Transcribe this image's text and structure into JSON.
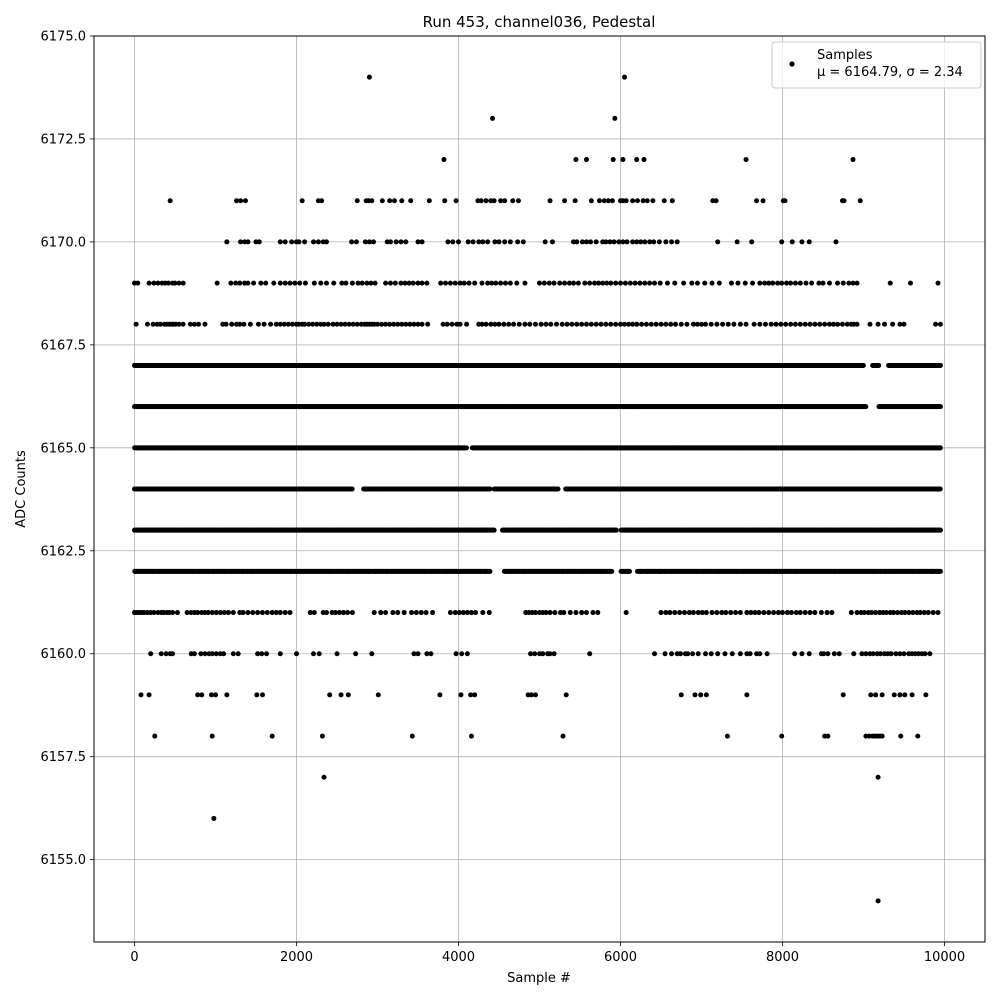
{
  "chart_data": {
    "type": "scatter",
    "title": "Run 453, channel036, Pedestal",
    "xlabel": "Sample #",
    "ylabel": "ADC Counts",
    "xlim": [
      -500,
      10500
    ],
    "ylim": [
      6153.0,
      6175.0
    ],
    "xticks": [
      0,
      2000,
      4000,
      6000,
      8000,
      10000
    ],
    "xtick_labels": [
      "0",
      "2000",
      "4000",
      "6000",
      "8000",
      "10000"
    ],
    "yticks": [
      6155.0,
      6157.5,
      6160.0,
      6162.5,
      6165.0,
      6167.5,
      6170.0,
      6172.5,
      6175.0
    ],
    "ytick_labels": [
      "6155.0",
      "6157.5",
      "6160.0",
      "6162.5",
      "6165.0",
      "6167.5",
      "6170.0",
      "6172.5",
      "6175.0"
    ],
    "grid": true,
    "legend": {
      "position": "top-right",
      "entries": [
        {
          "label": "Samples",
          "stats": "μ = 6164.79, σ = 2.34"
        }
      ]
    },
    "marker_color": "#000000",
    "series": [
      {
        "name": "Samples",
        "x_range": [
          0,
          9950
        ],
        "levels": [
          {
            "y": 6154,
            "x": [
              9180
            ]
          },
          {
            "y": 6156,
            "x": [
              980
            ]
          },
          {
            "y": 6157,
            "x": [
              2340,
              9180
            ]
          },
          {
            "y": 6158,
            "x": [
              250,
              960,
              1700,
              2320,
              3430,
              4160,
              5290,
              7320,
              7990,
              8520,
              8560,
              9030,
              9070,
              9110,
              9140,
              9170,
              9200,
              9230,
              9460,
              9670
            ]
          },
          {
            "y": 6159,
            "x": [
              80,
              180,
              780,
              830,
              950,
              1000,
              1140,
              1510,
              1580,
              2410,
              2550,
              2640,
              3010,
              3770,
              4030,
              4150,
              4200,
              4860,
              4900,
              4950,
              5330,
              6750,
              6920,
              6990,
              7060,
              7560,
              8750,
              9090,
              9150,
              9230,
              9380,
              9450,
              9510,
              9600,
              9770
            ]
          },
          {
            "y": 6160,
            "x": [
              200,
              330,
              390,
              440,
              470,
              700,
              740,
              820,
              870,
              920,
              960,
              1010,
              1060,
              1100,
              1220,
              1280,
              1520,
              1570,
              1630,
              1800,
              2000,
              2210,
              2280,
              2500,
              2730,
              2930,
              3450,
              3500,
              3610,
              3660,
              3970,
              4040,
              4110,
              4890,
              4940,
              5000,
              5040,
              5100,
              5130,
              5180,
              5620,
              6420,
              6550,
              6630,
              6700,
              6740,
              6800,
              6830,
              6890,
              6960,
              7050,
              7120,
              7200,
              7290,
              7380,
              7480,
              7560,
              7600,
              7680,
              7720,
              7810,
              8150,
              8240,
              8330,
              8480,
              8510,
              8560,
              8640,
              8700,
              8880,
              8980,
              9030,
              9080,
              9120,
              9170,
              9210,
              9260,
              9300,
              9340,
              9400,
              9450,
              9500,
              9560,
              9600,
              9640,
              9680,
              9720,
              9760,
              9820
            ]
          },
          {
            "y": 6161,
            "x": [
              0,
              30,
              60,
              90,
              120,
              160,
              200,
              240,
              290,
              330,
              360,
              400,
              430,
              470,
              530,
              650,
              700,
              740,
              780,
              830,
              870,
              910,
              960,
              1010,
              1060,
              1110,
              1160,
              1220,
              1300,
              1340,
              1400,
              1460,
              1520,
              1580,
              1640,
              1700,
              1750,
              1800,
              1860,
              1920,
              2170,
              2220,
              2330,
              2370,
              2440,
              2480,
              2530,
              2580,
              2630,
              2690,
              2960,
              3040,
              3100,
              3190,
              3250,
              3330,
              3420,
              3480,
              3540,
              3600,
              3680,
              3900,
              3960,
              4010,
              4060,
              4110,
              4160,
              4210,
              4300,
              4380,
              4830,
              4870,
              4910,
              4950,
              5000,
              5040,
              5080,
              5130,
              5190,
              5260,
              5300,
              5380,
              5450,
              5520,
              5580,
              5660,
              5720,
              6070,
              6500,
              6560,
              6610,
              6670,
              6730,
              6790,
              6850,
              6900,
              6960,
              7010,
              7060,
              7130,
              7190,
              7250,
              7300,
              7360,
              7420,
              7480,
              7560,
              7610,
              7660,
              7710,
              7770,
              7830,
              7890,
              7950,
              8000,
              8060,
              8110,
              8170,
              8220,
              8280,
              8340,
              8400,
              8480,
              8550,
              8610,
              8850,
              8920,
              8970,
              9010,
              9060,
              9100,
              9150,
              9200,
              9240,
              9280,
              9330,
              9370,
              9420,
              9470,
              9510,
              9560,
              9610,
              9660,
              9700,
              9750,
              9800,
              9860,
              9920
            ]
          },
          {
            "y": 6162,
            "gaps": [
              [
                4400,
                4560
              ],
              [
                5900,
                6000
              ],
              [
                6120,
                6200
              ]
            ]
          },
          {
            "y": 6163,
            "gaps": [
              [
                4450,
                4530
              ],
              [
                5950,
                6000
              ]
            ]
          },
          {
            "y": 6164,
            "gaps": [
              [
                2700,
                2820
              ],
              [
                4400,
                4440
              ],
              [
                5240,
                5320
              ]
            ]
          },
          {
            "y": 6165,
            "gaps": [
              [
                4100,
                4170
              ]
            ]
          },
          {
            "y": 6166,
            "gaps": [
              [
                9040,
                9190
              ]
            ]
          },
          {
            "y": 6167,
            "gaps": [
              [
                9000,
                9100
              ],
              [
                9190,
                9300
              ]
            ]
          },
          {
            "y": 6168,
            "x": [
              20,
              160,
              230,
              280,
              320,
              370,
              400,
              430,
              460,
              480,
              510,
              550,
              600,
              690,
              740,
              790,
              870,
              1090,
              1130,
              1200,
              1260,
              1300,
              1350,
              1430,
              1530,
              1600,
              1680,
              1750,
              1800,
              1850,
              1900,
              1950,
              2000,
              2030,
              2070,
              2100,
              2150,
              2200,
              2250,
              2300,
              2340,
              2390,
              2450,
              2500,
              2550,
              2600,
              2650,
              2700,
              2750,
              2800,
              2840,
              2870,
              2900,
              2930,
              2960,
              3000,
              3050,
              3100,
              3150,
              3200,
              3250,
              3300,
              3350,
              3400,
              3450,
              3500,
              3550,
              3620,
              3810,
              3860,
              3920,
              3980,
              4020,
              4100,
              4250,
              4290,
              4340,
              4400,
              4450,
              4500,
              4560,
              4620,
              4680,
              4750,
              4820,
              4880,
              4950,
              5020,
              5080,
              5140,
              5210,
              5280,
              5340,
              5400,
              5460,
              5520,
              5580,
              5640,
              5700,
              5760,
              5820,
              5880,
              5940,
              6000,
              6050,
              6100,
              6150,
              6200,
              6260,
              6320,
              6380,
              6440,
              6500,
              6560,
              6620,
              6680,
              6750,
              6820,
              6900,
              6950,
              7000,
              7050,
              7120,
              7190,
              7260,
              7330,
              7400,
              7480,
              7550,
              7650,
              7720,
              7790,
              7860,
              7920,
              7980,
              8040,
              8100,
              8160,
              8220,
              8280,
              8340,
              8400,
              8460,
              8520,
              8580,
              8630,
              8680,
              8740,
              8800,
              8850,
              8880,
              8920,
              9080,
              9180,
              9260,
              9360,
              9450,
              9500,
              9890,
              9950
            ]
          },
          {
            "y": 6169,
            "x": [
              0,
              40,
              180,
              240,
              290,
              340,
              380,
              420,
              470,
              500,
              550,
              600,
              1020,
              1190,
              1250,
              1300,
              1360,
              1400,
              1470,
              1560,
              1620,
              1720,
              1800,
              1860,
              1920,
              1980,
              2040,
              2110,
              2220,
              2300,
              2370,
              2460,
              2560,
              2610,
              2690,
              2760,
              2810,
              2870,
              2920,
              2970,
              3100,
              3160,
              3220,
              3290,
              3340,
              3390,
              3440,
              3500,
              3550,
              3610,
              3780,
              3840,
              3900,
              3960,
              4020,
              4070,
              4130,
              4200,
              4290,
              4360,
              4410,
              4460,
              4520,
              4580,
              4640,
              4720,
              4820,
              5000,
              5060,
              5120,
              5180,
              5250,
              5310,
              5370,
              5420,
              5480,
              5560,
              5620,
              5680,
              5730,
              5780,
              5830,
              5880,
              5940,
              6000,
              6060,
              6120,
              6180,
              6240,
              6300,
              6360,
              6420,
              6490,
              6580,
              6670,
              6780,
              6880,
              6950,
              7040,
              7130,
              7220,
              7370,
              7450,
              7540,
              7630,
              7720,
              7780,
              7830,
              7880,
              7940,
              7990,
              8050,
              8100,
              8160,
              8220,
              8290,
              8360,
              8450,
              8500,
              8580,
              8680,
              8750,
              8820,
              8870,
              8920,
              9330,
              9580,
              9920
            ]
          },
          {
            "y": 6170,
            "x": [
              1140,
              1310,
              1360,
              1400,
              1500,
              1540,
              1800,
              1860,
              1940,
              2000,
              2030,
              2100,
              2210,
              2270,
              2330,
              2370,
              2680,
              2740,
              2850,
              2900,
              2950,
              3120,
              3160,
              3230,
              3290,
              3350,
              3500,
              3550,
              3870,
              3930,
              4000,
              4120,
              4180,
              4250,
              4300,
              4360,
              4450,
              4500,
              4570,
              4640,
              4730,
              4800,
              5070,
              5160,
              5420,
              5460,
              5530,
              5580,
              5630,
              5700,
              5780,
              5820,
              5870,
              5920,
              5980,
              6030,
              6080,
              6150,
              6200,
              6250,
              6300,
              6360,
              6410,
              6480,
              6560,
              6630,
              6700,
              7200,
              7440,
              7620,
              7990,
              8120,
              8240,
              8330,
              8660
            ]
          },
          {
            "y": 6171,
            "x": [
              440,
              1260,
              1310,
              1370,
              2070,
              2270,
              2310,
              2750,
              2860,
              2890,
              2930,
              3060,
              3150,
              3210,
              3300,
              3410,
              3640,
              3830,
              3970,
              4240,
              4280,
              4340,
              4400,
              4440,
              4520,
              4570,
              4670,
              4740,
              5130,
              5310,
              5440,
              5640,
              5740,
              5800,
              5850,
              5900,
              6000,
              6030,
              6070,
              6150,
              6210,
              6280,
              6330,
              6400,
              6540,
              6640,
              7140,
              7180,
              7680,
              7760,
              8010,
              8030,
              8740,
              8760,
              8960
            ]
          },
          {
            "y": 6172,
            "x": [
              3820,
              5450,
              5580,
              5910,
              6030,
              6200,
              6290,
              7550,
              8870
            ]
          },
          {
            "y": 6173,
            "x": [
              4420,
              5930
            ]
          },
          {
            "y": 6174,
            "x": [
              2900,
              6050
            ]
          }
        ]
      }
    ]
  }
}
